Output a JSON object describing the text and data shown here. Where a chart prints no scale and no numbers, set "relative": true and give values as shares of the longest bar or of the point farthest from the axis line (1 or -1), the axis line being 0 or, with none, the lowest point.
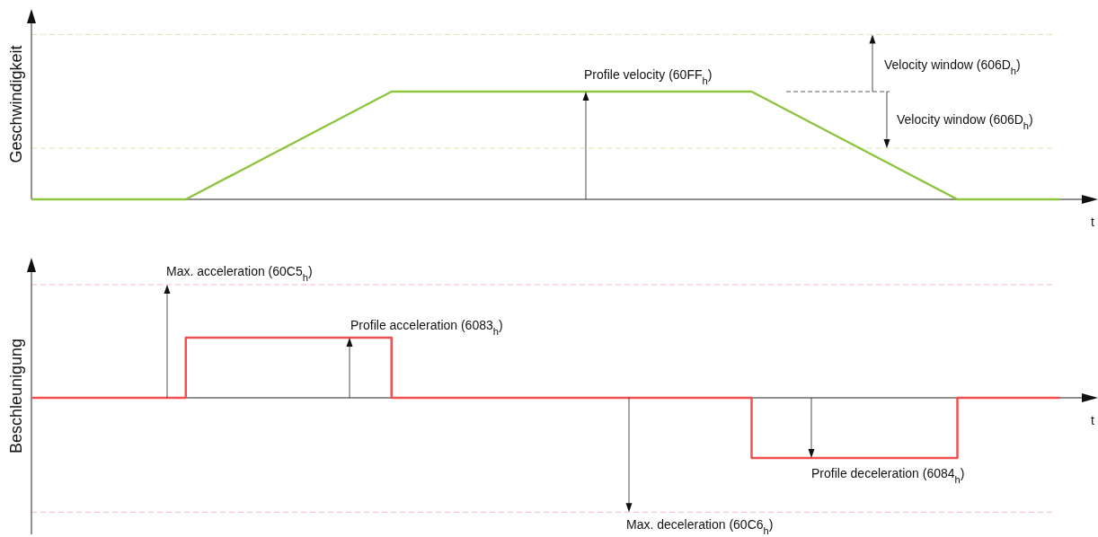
{
  "chart_data": [
    {
      "type": "line",
      "relative": true,
      "ylabel": "Geschwindigkeit",
      "xlabel": "t",
      "categories": [
        null,
        null,
        null,
        null,
        null,
        null,
        null,
        null,
        null,
        null,
        null,
        null,
        null,
        null,
        null,
        null,
        null,
        null,
        null,
        null,
        null
      ],
      "series": [
        {
          "color": "#8cc63f",
          "values": [
            0,
            0,
            0,
            0,
            0.25,
            0.5,
            0.75,
            1,
            1,
            1,
            1,
            1,
            1,
            1,
            1,
            0.75,
            0.5,
            0.25,
            0,
            0,
            0
          ]
        }
      ],
      "ref_lines": [
        {
          "axis": "y",
          "value": 1.53,
          "color": "#d8e6b0",
          "line_style": "dashed"
        },
        {
          "axis": "y",
          "value": 0.475,
          "color": "#d8e6b0",
          "line_style": "dashed"
        }
      ],
      "annotations": [
        "Profile velocity (60FF$_{h}$)",
        "Velocity window (606D$_{h}$)",
        "Velocity window (606D$_{h}$)"
      ]
    },
    {
      "type": "step",
      "relative": true,
      "ylabel": "Beschleunigung",
      "xlabel": "t",
      "categories": [
        null,
        null,
        null,
        null,
        null,
        null,
        null,
        null,
        null,
        null,
        null,
        null,
        null,
        null,
        null,
        null,
        null,
        null,
        null,
        null,
        null
      ],
      "series": [
        {
          "color": "#f25050",
          "values": [
            0,
            0,
            0,
            1,
            1,
            1,
            1,
            0,
            0,
            0,
            0,
            0,
            0,
            0,
            -1,
            -1,
            -1,
            -1,
            0,
            0,
            0
          ]
        }
      ],
      "ref_lines": [
        {
          "axis": "y",
          "value": 1.88,
          "color": "#f2b8c0",
          "line_style": "dashed"
        },
        {
          "axis": "y",
          "value": -1.9,
          "color": "#f2b8c0",
          "line_style": "dashed"
        }
      ],
      "annotations": [
        "Max. acceleration (60C5$_{h}$)",
        "Profile acceleration (6083$_{h}$)",
        "Profile deceleration (6084$_{h}$)",
        "Max. deceleration (60C6$_{h}$)"
      ]
    }
  ]
}
